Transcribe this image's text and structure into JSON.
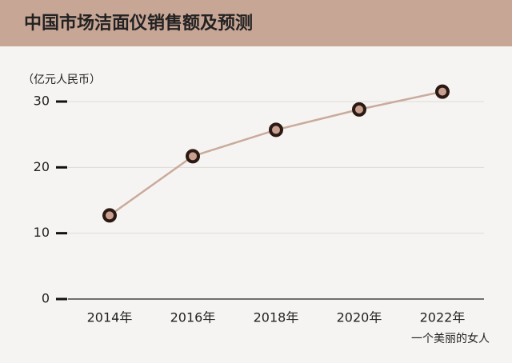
{
  "chart_data": {
    "type": "line",
    "title": "中国市场洁面仪销售额及预测",
    "unit_label": "（亿元人民币）",
    "categories": [
      "2014年",
      "2016年",
      "2018年",
      "2020年",
      "2022年"
    ],
    "values": [
      12.7,
      21.7,
      25.7,
      28.8,
      31.5
    ],
    "color": "#c9ab9c",
    "marker_color": "#c9a090",
    "ylim": [
      0,
      33
    ],
    "yticks": [
      0,
      10,
      20,
      30
    ],
    "grid": true,
    "watermark": "一个美丽的女人"
  }
}
